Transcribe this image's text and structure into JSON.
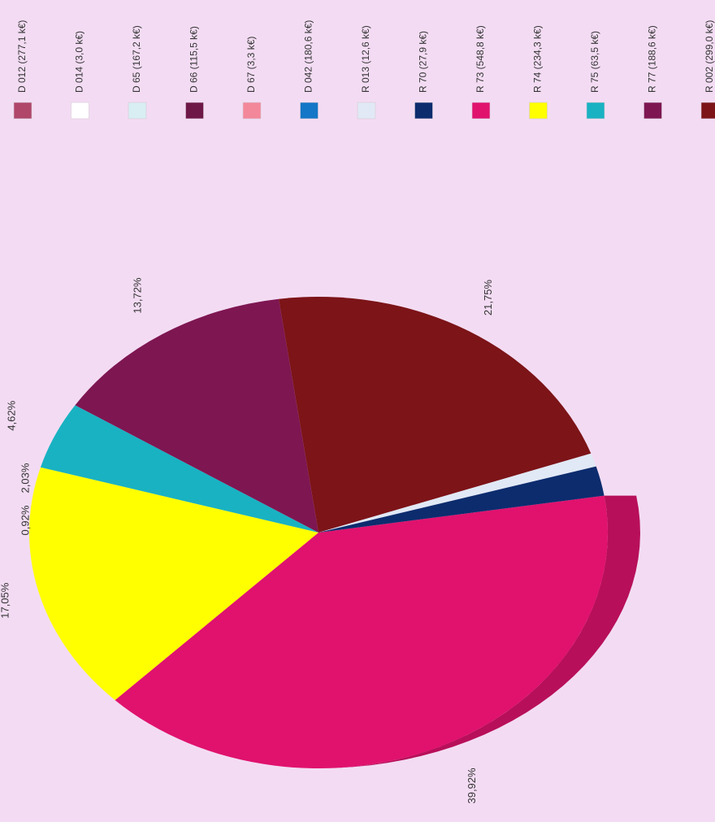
{
  "chart_data": {
    "type": "pie",
    "title": "",
    "orientation": "rotated 90 degrees clockwise",
    "legend_position": "top",
    "legend": [
      {
        "label": "D 012 (277,1 k€)",
        "color": "#b0466a"
      },
      {
        "label": "D 014 (3,0 k€)",
        "color": "#ffffff"
      },
      {
        "label": "D 65 (167,2 k€)",
        "color": "#d8eef2"
      },
      {
        "label": "D 66 (115,5 k€)",
        "color": "#6e1848"
      },
      {
        "label": "D 67 (3,3 k€)",
        "color": "#f3889a"
      },
      {
        "label": "D 042 (180,6 k€)",
        "color": "#1476c6"
      },
      {
        "label": "R 013 (12,6 k€)",
        "color": "#e1e9f6"
      },
      {
        "label": "R 70 (27,9 k€)",
        "color": "#0c2c6e"
      },
      {
        "label": "R 73 (548,8 k€)",
        "color": "#e0126e"
      },
      {
        "label": "R 74 (234,3 k€)",
        "color": "#ffff00"
      },
      {
        "label": "R 75 (63,5 k€)",
        "color": "#19b2c2"
      },
      {
        "label": "R 77 (188,6 k€)",
        "color": "#7e1652"
      },
      {
        "label": "R 002 (299,0 k€)",
        "color": "#7c1418"
      }
    ],
    "slices": [
      {
        "series": "R 73 (548,8 k€)",
        "value": 548.8,
        "percent_label": "39,92%",
        "color": "#e0126e"
      },
      {
        "series": "R 74 (234,3 k€)",
        "value": 234.3,
        "percent_label": "17,05%",
        "color": "#ffff00"
      },
      {
        "series": "R 75 (63,5 k€)",
        "value": 63.5,
        "percent_label": "4,62%",
        "color": "#19b2c2"
      },
      {
        "series": "R 77 (188,6 k€)",
        "value": 188.6,
        "percent_label": "13,72%",
        "color": "#7e1652"
      },
      {
        "series": "R 002 (299,0 k€)",
        "value": 299.0,
        "percent_label": "21,75%",
        "color": "#7c1418"
      },
      {
        "series": "R 013 (12,6 k€)",
        "value": 12.6,
        "percent_label": "0,92%",
        "color": "#e1e9f6"
      },
      {
        "series": "R 70 (27,9 k€)",
        "value": 27.9,
        "percent_label": "2,03%",
        "color": "#0c2c6e"
      }
    ]
  }
}
